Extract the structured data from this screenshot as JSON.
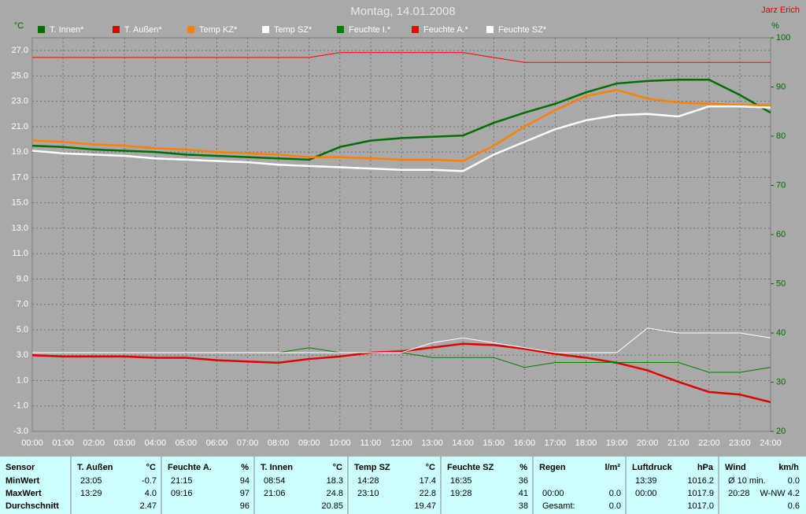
{
  "chart_data": {
    "type": "line",
    "title": "Montag, 14.01.2008",
    "author": "Jarz Erich",
    "ylabel": "°C",
    "y2label": "%",
    "x": [
      0,
      1,
      2,
      3,
      4,
      5,
      6,
      7,
      8,
      9,
      10,
      11,
      12,
      13,
      14,
      15,
      16,
      17,
      18,
      19,
      20,
      21,
      22,
      23,
      24
    ],
    "xlim": [
      0,
      24
    ],
    "xticks": [
      {
        "value": 0,
        "label": "00:00"
      },
      {
        "value": 1,
        "label": "01:00"
      },
      {
        "value": 2,
        "label": "02:00"
      },
      {
        "value": 3,
        "label": "03:00"
      },
      {
        "value": 4,
        "label": "04:00"
      },
      {
        "value": 5,
        "label": "05:00"
      },
      {
        "value": 6,
        "label": "06:00"
      },
      {
        "value": 7,
        "label": "07:00"
      },
      {
        "value": 8,
        "label": "08:00"
      },
      {
        "value": 9,
        "label": "09:00"
      },
      {
        "value": 10,
        "label": "10:00"
      },
      {
        "value": 11,
        "label": "11:00"
      },
      {
        "value": 12,
        "label": "12:00"
      },
      {
        "value": 13,
        "label": "13:00"
      },
      {
        "value": 14,
        "label": "14:00"
      },
      {
        "value": 15,
        "label": "15:00"
      },
      {
        "value": 16,
        "label": "16:00"
      },
      {
        "value": 17,
        "label": "17:00"
      },
      {
        "value": 18,
        "label": "18:00"
      },
      {
        "value": 19,
        "label": "19:00"
      },
      {
        "value": 20,
        "label": "20:00"
      },
      {
        "value": 21,
        "label": "21:00"
      },
      {
        "value": 22,
        "label": "22:00"
      },
      {
        "value": 23,
        "label": "23:00"
      },
      {
        "value": 24,
        "label": "24:00"
      }
    ],
    "ylim": [
      -3,
      28
    ],
    "yticks": [
      {
        "value": -3,
        "label": "-3.0"
      },
      {
        "value": -1,
        "label": "-1.0"
      },
      {
        "value": 1,
        "label": "1.0"
      },
      {
        "value": 3,
        "label": "3.0"
      },
      {
        "value": 5,
        "label": "5.0"
      },
      {
        "value": 7,
        "label": "7.0"
      },
      {
        "value": 9,
        "label": "9.0"
      },
      {
        "value": 11,
        "label": "11.0"
      },
      {
        "value": 13,
        "label": "13.0"
      },
      {
        "value": 15,
        "label": "15.0"
      },
      {
        "value": 17,
        "label": "17.0"
      },
      {
        "value": 19,
        "label": "19.0"
      },
      {
        "value": 21,
        "label": "21.0"
      },
      {
        "value": 23,
        "label": "23.0"
      },
      {
        "value": 25,
        "label": "25.0"
      },
      {
        "value": 27,
        "label": "27.0"
      }
    ],
    "y2lim": [
      20,
      100
    ],
    "y2ticks": [
      20,
      30,
      40,
      50,
      60,
      70,
      80,
      90,
      100
    ],
    "grid": true,
    "series": [
      {
        "name": "T. Innen*",
        "color": "#006e00",
        "values": [
          19.5,
          19.4,
          19.2,
          19.1,
          19.0,
          18.8,
          18.7,
          18.6,
          18.5,
          18.4,
          19.4,
          19.9,
          20.1,
          20.2,
          20.3,
          21.3,
          22.1,
          22.8,
          23.7,
          24.4,
          24.6,
          24.7,
          24.7,
          23.5,
          22.1
        ]
      },
      {
        "name": "T. Außen*",
        "color": "#e00000",
        "values": [
          3.0,
          2.9,
          2.9,
          2.9,
          2.8,
          2.8,
          2.6,
          2.5,
          2.4,
          2.7,
          2.9,
          3.2,
          3.3,
          3.6,
          3.9,
          3.8,
          3.5,
          3.1,
          2.8,
          2.4,
          1.8,
          0.9,
          0.1,
          -0.1,
          -0.7
        ]
      },
      {
        "name": "Temp KZ*",
        "color": "#ff8000",
        "values": [
          19.9,
          19.8,
          19.6,
          19.5,
          19.3,
          19.2,
          19.0,
          18.9,
          18.8,
          18.6,
          18.6,
          18.5,
          18.4,
          18.4,
          18.3,
          19.5,
          21.0,
          22.3,
          23.4,
          23.9,
          23.2,
          22.9,
          22.8,
          22.7,
          22.7
        ]
      },
      {
        "name": "Temp SZ*",
        "color": "#ffffff",
        "values": [
          19.1,
          18.9,
          18.8,
          18.7,
          18.5,
          18.4,
          18.3,
          18.2,
          18.0,
          17.9,
          17.8,
          17.7,
          17.6,
          17.6,
          17.5,
          18.8,
          19.8,
          20.8,
          21.5,
          21.9,
          22.0,
          21.8,
          22.6,
          22.6,
          22.5
        ]
      },
      {
        "name": "Feuchte I.*",
        "color": "#008000",
        "axis": "y2",
        "values": [
          36,
          36,
          36,
          36,
          36,
          36,
          36,
          36,
          36,
          37,
          36,
          36,
          36,
          35,
          35,
          35,
          33,
          34,
          34,
          34,
          34,
          34,
          32,
          32,
          33
        ]
      },
      {
        "name": "Feuchte A.*",
        "color": "#ff0000",
        "axis": "y2",
        "values": [
          96,
          96,
          96,
          96,
          96,
          96,
          96,
          96,
          96,
          96,
          97,
          97,
          97,
          97,
          97,
          96,
          95,
          95,
          95,
          95,
          95,
          95,
          95,
          95,
          95
        ]
      },
      {
        "name": "Feuchte SZ*",
        "color": "#ffffff",
        "axis": "y2",
        "values": [
          36,
          36,
          36,
          36,
          36,
          36,
          36,
          36,
          36,
          36,
          36,
          36,
          36,
          38,
          39,
          38,
          37,
          36,
          36,
          36,
          41,
          40,
          40,
          40,
          39
        ]
      }
    ]
  },
  "table": {
    "row_labels": [
      "Sensor",
      "MinWert",
      "MaxWert",
      "Durchschnitt"
    ],
    "groups": [
      {
        "name": "T. Außen",
        "unit": "°C",
        "min": [
          "23:05",
          "-0.7"
        ],
        "max": [
          "13:29",
          "4.0"
        ],
        "avg": [
          "2.47"
        ]
      },
      {
        "name": "Feuchte A.",
        "unit": "%",
        "min": [
          "21:15",
          "94"
        ],
        "max": [
          "09:16",
          "97"
        ],
        "avg": [
          "96"
        ]
      },
      {
        "name": "T. Innen",
        "unit": "°C",
        "min": [
          "08:54",
          "18.3"
        ],
        "max": [
          "21:06",
          "24.8"
        ],
        "avg": [
          "20.85"
        ]
      },
      {
        "name": "Temp SZ",
        "unit": "°C",
        "min": [
          "14:28",
          "17.4"
        ],
        "max": [
          "23:10",
          "22.8"
        ],
        "avg": [
          "19.47"
        ]
      },
      {
        "name": "Feuchte SZ",
        "unit": "%",
        "min": [
          "16:35",
          "36"
        ],
        "max": [
          "19:28",
          "41"
        ],
        "avg": [
          "38"
        ]
      },
      {
        "name": "Regen",
        "unit": "l/m²",
        "max": [
          "00:00",
          "0.0"
        ],
        "avg": [
          "Gesamt:",
          "0.0"
        ]
      },
      {
        "name": "Luftdruck",
        "unit": "hPa",
        "min": [
          "13:39",
          "1016.2"
        ],
        "max": [
          "00:00",
          "1017.9"
        ],
        "avg": [
          "1017.0"
        ]
      },
      {
        "name": "Wind",
        "unit": "km/h",
        "min": [
          "Ø 10 min.",
          "0.0"
        ],
        "max": [
          "20:28",
          "W-NW 4.2"
        ],
        "avg": [
          "0.6"
        ]
      }
    ]
  }
}
